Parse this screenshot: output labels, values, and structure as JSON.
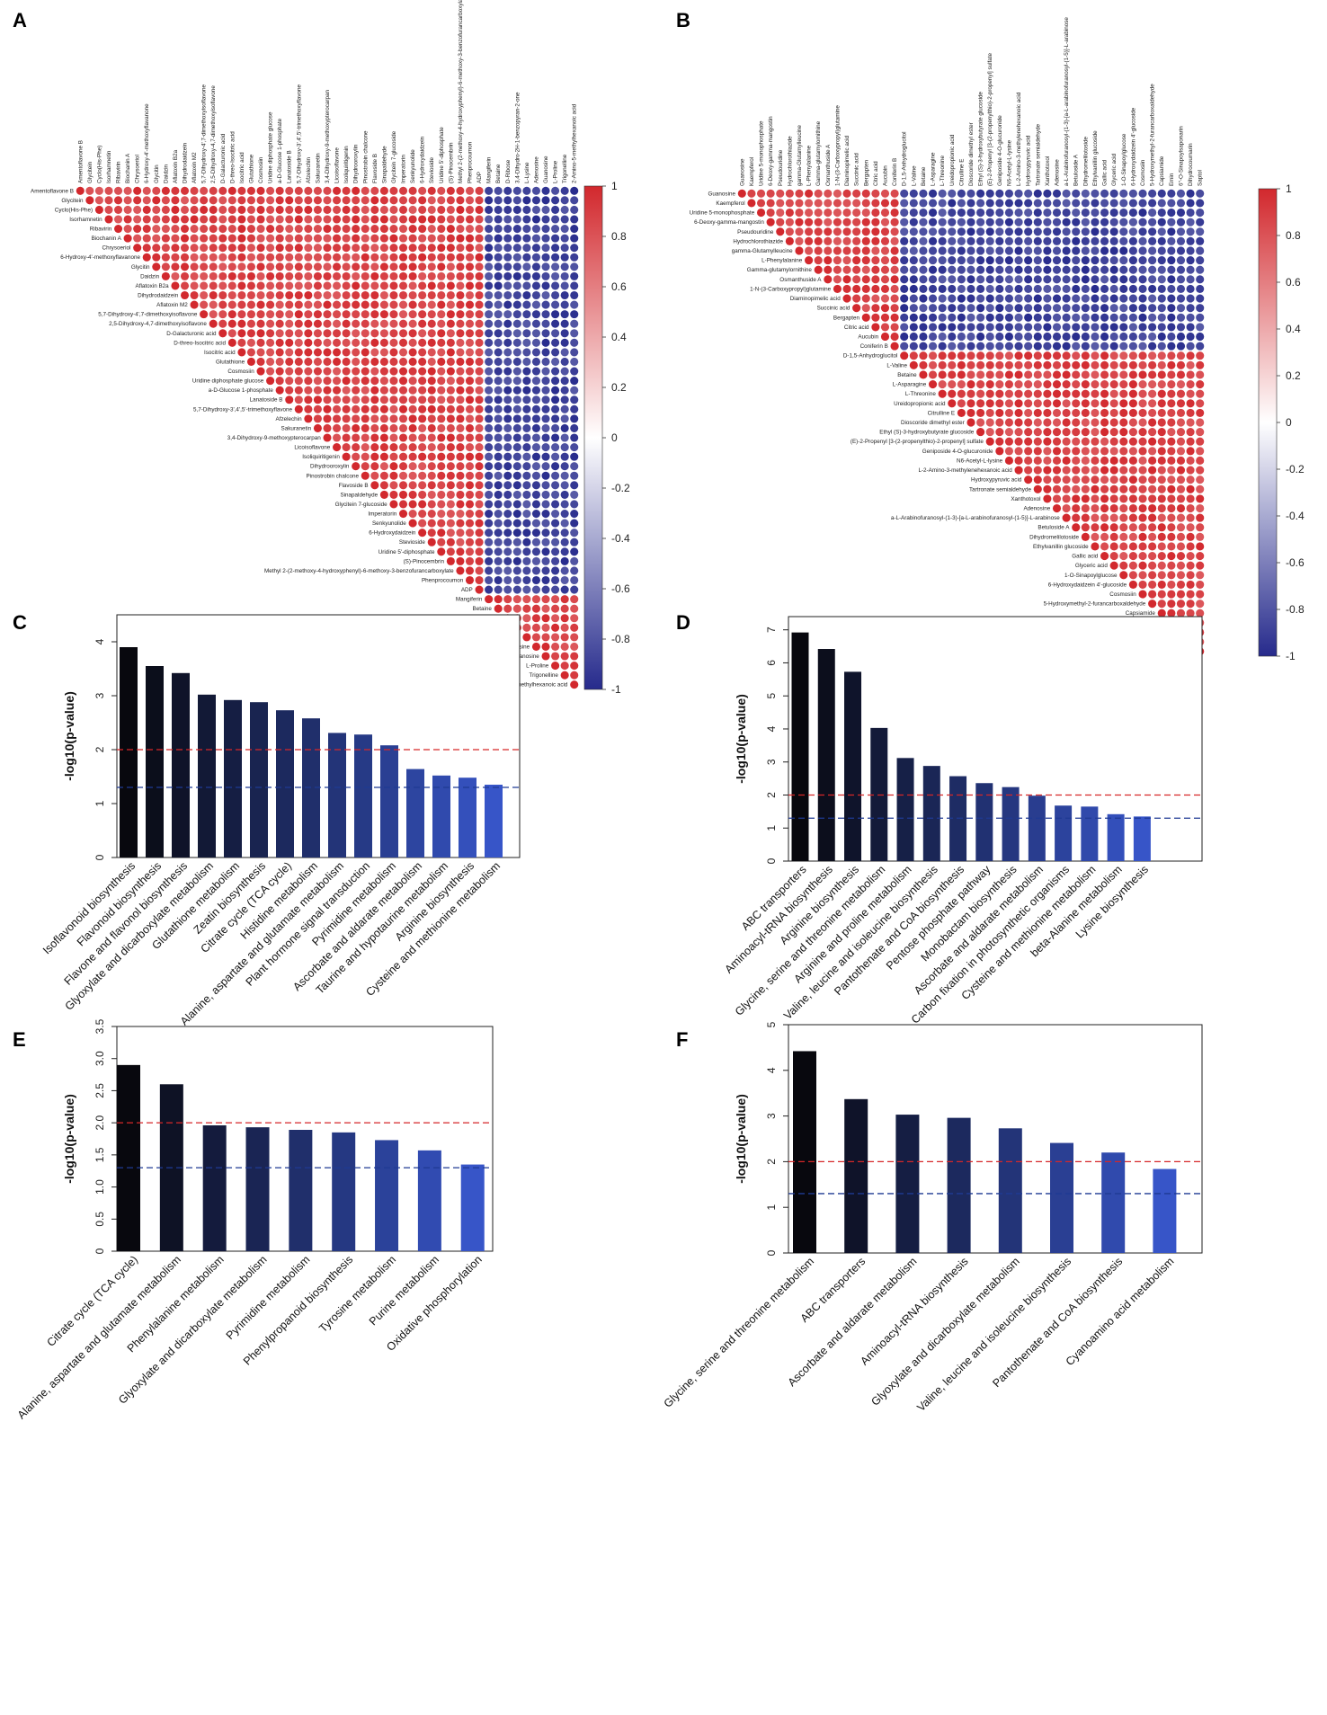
{
  "colors": {
    "positive": "#d7191c",
    "negative": "#2c2c8c",
    "neutral": "#ffffff",
    "refline_red": "#d62728",
    "refline_blue": "#1f3a93"
  },
  "chart_data": [
    {
      "panel": "A",
      "type": "heatmap",
      "subtype": "correlation-upper-triangle",
      "labels": [
        "Amentoflavone B",
        "Glycitein",
        "Cyclo(His-Phe)",
        "Isorhamnetin",
        "Ribavirin",
        "Biochanin A",
        "Chrysoeriol",
        "6-Hydroxy-4'-methoxyflavanone",
        "Glycitin",
        "Daidzin",
        "Aflatoxin B2a",
        "Dihydrodaidzein",
        "Aflatoxin M2",
        "5,7-Dihydroxy-4',7-dimethoxyisoflavone",
        "2,5-Dihydroxy-4,7-dimethoxyisoflavone",
        "D-Galacturonic acid",
        "D-threo-Isocitric acid",
        "Isocitric acid",
        "Glutathione",
        "Cosmosiin",
        "Uridine diphosphate glucose",
        "a-D-Glucose 1-phosphate",
        "Lanatoside B",
        "5,7-Dihydroxy-3',4',5'-trimethoxyflavone",
        "Afzelechin",
        "Sakuranetin",
        "3,4-Dihydroxy-9-methoxypterocarpan",
        "Licoisoflavone",
        "Isoliquiritigenin",
        "Dihydrooroxylin",
        "Pinostrobin chalcone",
        "Flavoside B",
        "Sinapaldehyde",
        "Glycitein 7-glucoside",
        "Imperatorin",
        "Senkyunolide",
        "6-Hydroxydaidzein",
        "Stevioside",
        "Uridine 5'-diphosphate",
        "(S)-Pinocembrin",
        "Methyl 2-(2-methoxy-4-hydroxyphenyl)-6-methoxy-3-benzofurancarboxylate",
        "Phenprocoumon",
        "ADP",
        "Mangiferin",
        "Betaine",
        "D-Ribose",
        "3,4-Dihydro-2H-1-benzopyran-2-one",
        "L-Lysine",
        "Adenosine",
        "Guanosine",
        "L-Proline",
        "Trigonelline",
        "2-Amino-5-methylhexanoic acid"
      ],
      "group_split": 43,
      "value_range": [
        -1,
        1
      ],
      "colorbar_ticks": [
        "1",
        "0.8",
        "0.6",
        "0.4",
        "0.2",
        "0",
        "-0.2",
        "-0.4",
        "-0.6",
        "-0.8",
        "-1"
      ]
    },
    {
      "panel": "B",
      "type": "heatmap",
      "subtype": "correlation-upper-triangle",
      "labels": [
        "Guanosine",
        "Kaempferol",
        "Uridine 5-monophosphate",
        "6-Deoxy-gamma-mangostin",
        "Pseudouridine",
        "Hydrochlorothiazide",
        "gamma-Glutamylleucine",
        "L-Phenylalanine",
        "Gamma-glutamylornithine",
        "Osmanthuside A",
        "1-N-(3-Carboxypropyl)glutamine",
        "Diaminopimelic acid",
        "Succinic acid",
        "Bergapten",
        "Citric acid",
        "Aucubin",
        "Coniferin B",
        "D-1,5-Anhydroglucitol",
        "L-Valine",
        "Betaine",
        "L-Asparagine",
        "L-Threonine",
        "Ureidopropionic acid",
        "Citrulline E",
        "Dioscoride dimethyl ester",
        "Ethyl (S)-3-hydroxybutyrate glucoside",
        "(E)-2-Propenyl [3-(2-propenylthio)-2-propenyl] sulfate",
        "Geniposide 4-O-glucuronide",
        "N6-Acetyl-L-lysine",
        "L-2-Amino-3-methylenehexanoic acid",
        "Hydroxypyruvic acid",
        "Tartronate semialdehyde",
        "Xanthotoxol",
        "Adenosine",
        "a-L-Arabinofuranosyl-(1-3)-[a-L-arabinofuranosyl-(1-5)]-L-arabinose",
        "Betuloside A",
        "Dihydromelilotoside",
        "Ethylvanillin glucoside",
        "Gallic acid",
        "Glyceric acid",
        "1-O-Sinapoylglucose",
        "6-Hydroxydaidzein 4'-glucoside",
        "Cosmosiin",
        "5-Hydroxymethyl-2-furancarboxaldehyde",
        "Capsiamide",
        "Emin",
        "6''-O-Sinapoylsaponarin",
        "Dihydrocoumarin",
        "Saptol"
      ],
      "group_split": 17,
      "value_range": [
        -1,
        1
      ],
      "colorbar_ticks": [
        "1",
        "0.8",
        "0.6",
        "0.4",
        "0.2",
        "0",
        "-0.2",
        "-0.4",
        "-0.6",
        "-0.8",
        "-1"
      ]
    },
    {
      "panel": "C",
      "type": "bar",
      "ylabel": "-log10(p-value)",
      "ylim": [
        0,
        4.5
      ],
      "yticks": [
        0,
        1,
        2,
        3,
        4
      ],
      "ytick_labels": [
        "0",
        "1",
        "2",
        "3",
        "4"
      ],
      "hlines": [
        2.0,
        1.3
      ],
      "categories": [
        "Isoflavonoid biosynthesis",
        "Flavonoid biosynthesis",
        "Flavone and flavonol biosynthesis",
        "Glyoxylate and dicarboxylate metabolism",
        "Glutathione metabolism",
        "Zeatin biosynthesis",
        "Citrate cycle (TCA cycle)",
        "Histidine metabolism",
        "Alanine, aspartate and glutamate metabolism",
        "Plant hormone signal transduction",
        "Pyrimidine metabolism",
        "Ascorbate and aldarate metabolism",
        "Taurine and hypotaurine metabolism",
        "Arginine biosynthesis",
        "Cysteine and methionine metabolism"
      ],
      "values": [
        3.9,
        3.55,
        3.42,
        3.02,
        2.92,
        2.88,
        2.73,
        2.58,
        2.31,
        2.28,
        2.08,
        1.64,
        1.52,
        1.48,
        1.35
      ]
    },
    {
      "panel": "D",
      "type": "bar",
      "ylabel": "-log10(p-value)",
      "ylim": [
        0,
        7.4
      ],
      "yticks": [
        0,
        1,
        2,
        3,
        4,
        5,
        6,
        7
      ],
      "ytick_labels": [
        "0",
        "1",
        "2",
        "3",
        "4",
        "5",
        "6",
        "7"
      ],
      "hlines": [
        2.0,
        1.3
      ],
      "categories": [
        "ABC transporters",
        "Aminoacyl-tRNA biosynthesis",
        "Arginine biosynthesis",
        "Glycine, serine and threonine metabolism",
        "Arginine and proline metabolism",
        "Valine, leucine and isoleucine biosynthesis",
        "Pantothenate and CoA biosynthesis",
        "Pentose phosphate pathway",
        "Monobactam biosynthesis",
        "Ascorbate and aldarate metabolism",
        "Carbon fixation in photosynthetic organisms",
        "Cysteine and methionine metabolism",
        "beta-Alanine metabolism",
        "Lysine biosynthesis"
      ],
      "values": [
        6.92,
        6.42,
        5.73,
        4.03,
        3.12,
        2.88,
        2.57,
        2.36,
        2.24,
        1.98,
        1.68,
        1.65,
        1.42,
        1.35
      ]
    },
    {
      "panel": "E",
      "type": "bar",
      "ylabel": "-log10(p-value)",
      "ylim": [
        0,
        3.5
      ],
      "yticks": [
        0,
        0.5,
        1.0,
        1.5,
        2.0,
        2.5,
        3.0,
        3.5
      ],
      "ytick_labels": [
        "0",
        "0.5",
        "1.0",
        "1.5",
        "2.0",
        "2.5",
        "3.0",
        "3.5"
      ],
      "hlines": [
        2.0,
        1.3
      ],
      "categories": [
        "Citrate cycle (TCA cycle)",
        "Alanine, aspartate and glutamate metabolism",
        "Phenylalanine metabolism",
        "Glyoxylate and dicarboxylate metabolism",
        "Pyrimidine metabolism",
        "Phenylpropanoid biosynthesis",
        "Tyrosine metabolism",
        "Purine metabolism",
        "Oxidative phosphorylation"
      ],
      "values": [
        2.9,
        2.6,
        1.96,
        1.93,
        1.89,
        1.85,
        1.73,
        1.57,
        1.35
      ]
    },
    {
      "panel": "F",
      "type": "bar",
      "ylabel": "-log10(p-value)",
      "ylim": [
        0,
        5
      ],
      "yticks": [
        0,
        1,
        2,
        3,
        4,
        5
      ],
      "ytick_labels": [
        "0",
        "1",
        "2",
        "3",
        "4",
        "5"
      ],
      "hlines": [
        2.0,
        1.3
      ],
      "categories": [
        "Glycine, serine and threonine metabolism",
        "ABC transporters",
        "Ascorbate and aldarate metabolism",
        "Aminoacyl-tRNA biosynthesis",
        "Glyoxylate and dicarboxylate metabolism",
        "Valine, leucine and isoleucine biosynthesis",
        "Pantothenate and CoA biosynthesis",
        "Cyanoamino acid metabolism"
      ],
      "values": [
        4.42,
        3.37,
        3.03,
        2.96,
        2.73,
        2.41,
        2.2,
        1.84
      ]
    }
  ]
}
